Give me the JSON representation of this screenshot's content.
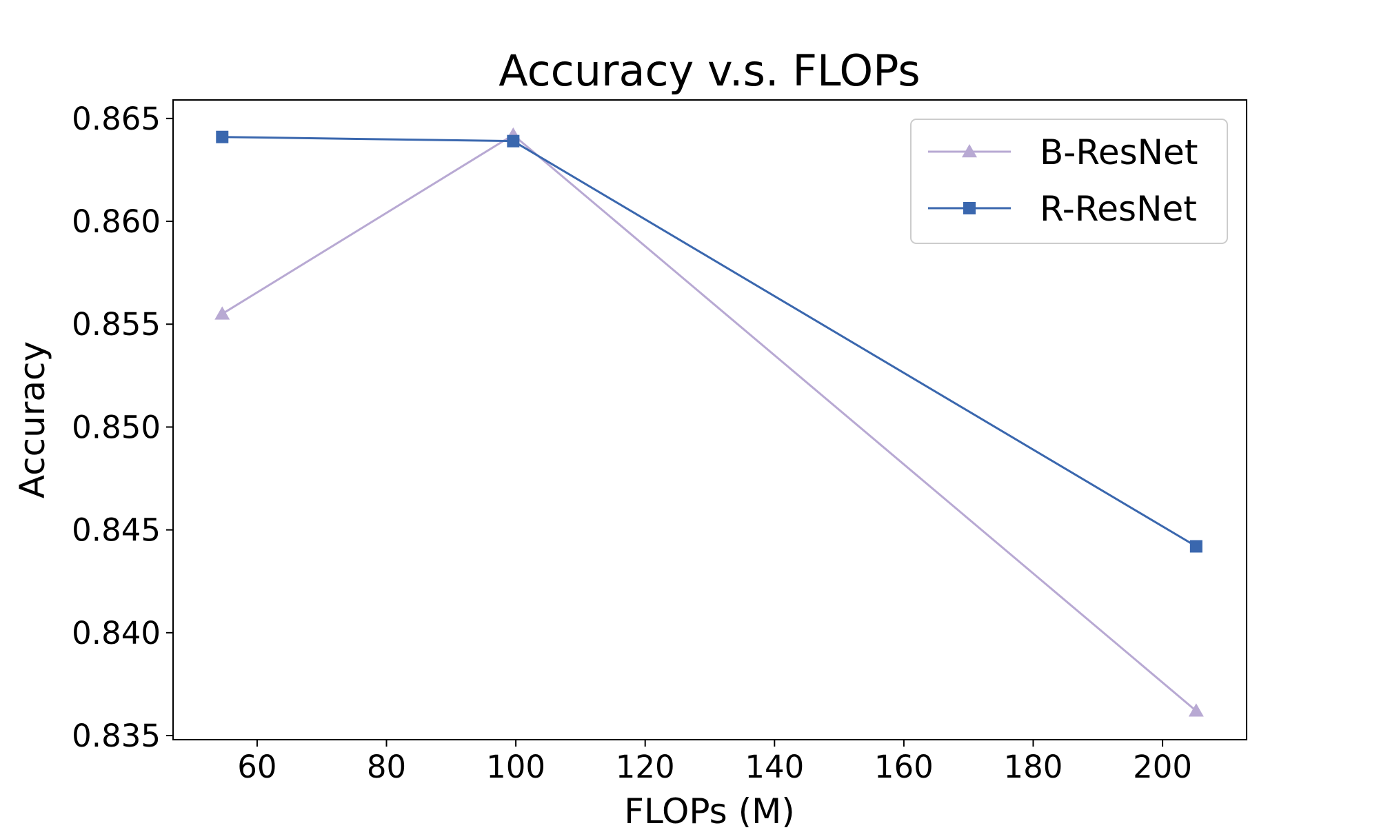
{
  "chart_data": {
    "type": "line",
    "title": "Accuracy v.s. FLOPs",
    "xlabel": "FLOPs (M)",
    "ylabel": "Accuracy",
    "x": [
      54.6,
      99.6,
      205.2
    ],
    "series": [
      {
        "name": "B-ResNet",
        "values": [
          0.8555,
          0.8642,
          0.8362
        ],
        "color": "#b8a9d3",
        "marker": "triangle"
      },
      {
        "name": "R-ResNet",
        "values": [
          0.8641,
          0.8639,
          0.8442
        ],
        "color": "#3a67ae",
        "marker": "square"
      }
    ],
    "xlim": [
      47,
      213
    ],
    "ylim": [
      0.8348,
      0.8659
    ],
    "xticks": [
      60,
      80,
      100,
      120,
      140,
      160,
      180,
      200
    ],
    "xtick_labels": [
      "60",
      "80",
      "100",
      "120",
      "140",
      "160",
      "180",
      "200"
    ],
    "yticks": [
      0.835,
      0.84,
      0.845,
      0.85,
      0.855,
      0.86,
      0.865
    ],
    "ytick_labels": [
      "0.835",
      "0.840",
      "0.845",
      "0.850",
      "0.855",
      "0.860",
      "0.865"
    ],
    "grid": false,
    "legend_position": "top-right"
  }
}
